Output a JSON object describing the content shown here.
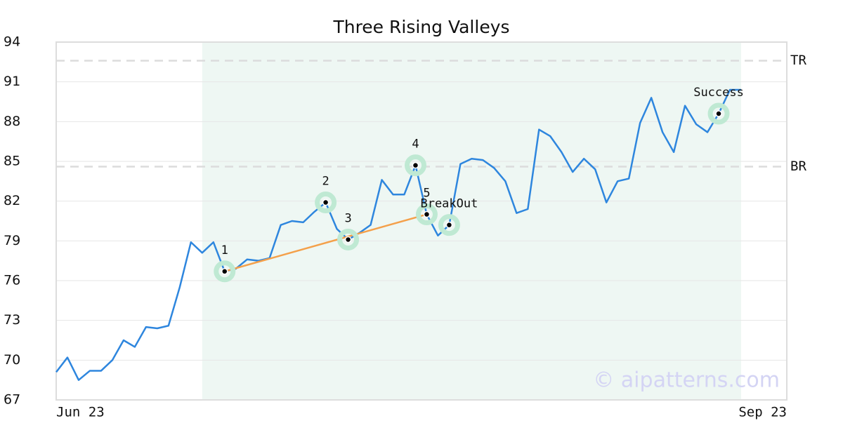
{
  "chart_data": {
    "type": "line",
    "title": "Three Rising Valleys",
    "categories": [
      "Jun 23",
      null,
      null,
      null,
      null,
      null,
      null,
      null,
      null,
      null,
      null,
      null,
      null,
      null,
      null,
      null,
      null,
      null,
      null,
      null,
      null,
      null,
      null,
      null,
      null,
      null,
      null,
      null,
      null,
      null,
      null,
      null,
      null,
      null,
      null,
      null,
      null,
      null,
      null,
      null,
      null,
      null,
      null,
      null,
      null,
      null,
      null,
      null,
      null,
      null,
      null,
      null,
      null,
      null,
      null,
      null,
      null,
      null,
      null,
      null,
      null,
      "Sep 23"
    ],
    "series": [
      {
        "color": "#2e86de",
        "values": [
          69.1,
          70.2,
          68.5,
          69.2,
          69.2,
          70.0,
          71.5,
          71.0,
          72.5,
          72.4,
          72.6,
          75.5,
          78.9,
          78.1,
          78.9,
          76.7,
          76.9,
          77.6,
          77.5,
          77.7,
          80.2,
          80.5,
          80.4,
          81.2,
          81.9,
          79.9,
          79.1,
          79.6,
          80.2,
          83.6,
          82.5,
          82.5,
          84.7,
          81.0,
          79.4,
          80.2,
          84.8,
          85.2,
          85.1,
          84.5,
          83.5,
          81.1,
          81.4,
          87.4,
          86.9,
          85.7,
          84.2,
          85.2,
          84.4,
          81.9,
          83.5,
          83.7,
          87.9,
          89.8,
          87.2,
          85.7,
          89.2,
          87.8,
          87.2,
          88.6,
          90.4,
          90.4
        ]
      }
    ],
    "ylim": [
      67,
      94
    ],
    "yticks": [
      67,
      70,
      73,
      76,
      79,
      82,
      85,
      88,
      91,
      94
    ],
    "grid": true,
    "reference_lines": [
      {
        "label": "TR",
        "value": 92.6
      },
      {
        "label": "BR",
        "value": 84.6
      }
    ],
    "markers": [
      {
        "label": "1",
        "point": 15
      },
      {
        "label": "2",
        "point": 24
      },
      {
        "label": "3",
        "point": 26
      },
      {
        "label": "4",
        "point": 32
      },
      {
        "label": "5",
        "point": 33
      },
      {
        "label": "BreakOut",
        "point": 35
      },
      {
        "label": "Success",
        "point": 59
      }
    ],
    "trendline": {
      "color": "#f4a04a",
      "from": 15,
      "to": 33
    },
    "watermark": "© aipatterns.com"
  }
}
